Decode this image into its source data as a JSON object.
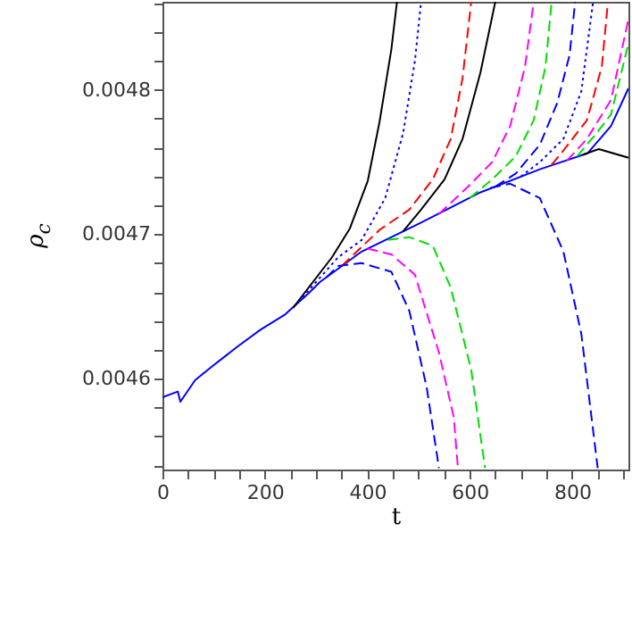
{
  "chart_data": {
    "type": "line",
    "xlabel": "t",
    "ylabel": "ρ$_{c}$",
    "xlim": [
      0,
      910
    ],
    "ylim": [
      0.004537,
      0.004861
    ],
    "xticks": [
      0,
      {
        "value": 50,
        "label": null
      },
      {
        "value": 100,
        "label": null
      },
      {
        "value": 150,
        "label": null
      },
      200,
      {
        "value": 250,
        "label": null
      },
      {
        "value": 300,
        "label": null
      },
      {
        "value": 350,
        "label": null
      },
      400,
      {
        "value": 450,
        "label": null
      },
      {
        "value": 500,
        "label": null
      },
      {
        "value": 550,
        "label": null
      },
      600,
      {
        "value": 650,
        "label": null
      },
      {
        "value": 700,
        "label": null
      },
      {
        "value": 750,
        "label": null
      },
      800,
      {
        "value": 850,
        "label": null
      },
      {
        "value": 900,
        "label": null
      }
    ],
    "yticks": [
      {
        "value": 0.00454,
        "label": null
      },
      {
        "value": 0.00456,
        "label": null
      },
      {
        "value": 0.00458,
        "label": null
      },
      {
        "value": 0.0046,
        "label": "0.0046"
      },
      {
        "value": 0.00462,
        "label": null
      },
      {
        "value": 0.00464,
        "label": null
      },
      {
        "value": 0.00466,
        "label": null
      },
      {
        "value": 0.00468,
        "label": null
      },
      {
        "value": 0.0047,
        "label": "0.0047"
      },
      {
        "value": 0.00472,
        "label": null
      },
      {
        "value": 0.00474,
        "label": null
      },
      {
        "value": 0.00476,
        "label": null
      },
      {
        "value": 0.00478,
        "label": null
      },
      {
        "value": 0.0048,
        "label": "0.0048"
      },
      {
        "value": 0.00482,
        "label": null
      },
      {
        "value": 0.00484,
        "label": null
      },
      {
        "value": 0.00486,
        "label": null
      }
    ],
    "grid": false,
    "series": [
      {
        "color": "#0000ff",
        "line_style": "solid",
        "x": [
          0,
          30,
          35,
          64,
          99,
          146,
          192,
          238,
          285,
          308,
          389,
          505,
          621,
          737,
          830,
          876,
          910
        ],
        "values": [
          0.004587,
          0.004591,
          0.004584,
          0.004599,
          0.004609,
          0.004622,
          0.004634,
          0.004644,
          0.004659,
          0.004667,
          0.004688,
          0.004708,
          0.004729,
          0.004745,
          0.004756,
          0.004775,
          0.004801
        ]
      },
      {
        "color": "#000000",
        "line_style": "solid",
        "x": [
          255,
          331,
          366,
          401,
          424,
          447,
          458
        ],
        "values": [
          0.004649,
          0.004684,
          0.004704,
          0.004737,
          0.004778,
          0.004828,
          0.004861
        ]
      },
      {
        "color": "#0000ff",
        "line_style": "dotted",
        "x": [
          265,
          343,
          389,
          435,
          470,
          493,
          505
        ],
        "values": [
          0.004653,
          0.004684,
          0.004696,
          0.004725,
          0.00477,
          0.00482,
          0.004861
        ]
      },
      {
        "color": "#ff0000",
        "line_style": "dashed",
        "x": [
          350,
          424,
          482,
          528,
          563,
          586,
          603
        ],
        "values": [
          0.004678,
          0.004703,
          0.004717,
          0.004738,
          0.004766,
          0.004808,
          0.004861
        ]
      },
      {
        "color": "#000000",
        "line_style": "solid",
        "x": [
          470,
          505,
          551,
          586,
          621,
          650
        ],
        "values": [
          0.004702,
          0.004717,
          0.004738,
          0.004766,
          0.004812,
          0.004861
        ]
      },
      {
        "color": "#ff00ff",
        "line_style": "dashed",
        "x": [
          540,
          597,
          644,
          679,
          708,
          725
        ],
        "values": [
          0.004714,
          0.004733,
          0.00475,
          0.004775,
          0.004816,
          0.004861
        ]
      },
      {
        "color": "#00dd00",
        "line_style": "dashed",
        "x": [
          600,
          644,
          690,
          725,
          748,
          760
        ],
        "values": [
          0.004725,
          0.004738,
          0.004754,
          0.004779,
          0.004816,
          0.004861
        ]
      },
      {
        "color": "#0000ff",
        "line_style": "dashed",
        "x": [
          650,
          690,
          737,
          771,
          795,
          806
        ],
        "values": [
          0.004733,
          0.004742,
          0.004762,
          0.004791,
          0.004824,
          0.004861
        ]
      },
      {
        "color": "#0000ff",
        "line_style": "dotted",
        "x": [
          700,
          737,
          783,
          818,
          841
        ],
        "values": [
          0.00474,
          0.00475,
          0.004766,
          0.004799,
          0.004861
        ]
      },
      {
        "color": "#ff0000",
        "line_style": "dashed",
        "x": [
          760,
          783,
          829,
          858,
          870
        ],
        "values": [
          0.004748,
          0.004758,
          0.004779,
          0.004816,
          0.004861
        ]
      },
      {
        "color": "#ff00ff",
        "line_style": "dashed",
        "x": [
          790,
          829,
          876,
          910
        ],
        "values": [
          0.004751,
          0.004766,
          0.004793,
          0.004849
        ]
      },
      {
        "color": "#00dd00",
        "line_style": "dashed",
        "x": [
          810,
          850,
          876,
          910
        ],
        "values": [
          0.004754,
          0.004771,
          0.004783,
          0.004832
        ]
      },
      {
        "color": "#000000",
        "line_style": "solid",
        "x": [
          820,
          852,
          910
        ],
        "values": [
          0.004755,
          0.004759,
          0.004753
        ]
      },
      {
        "color": "#0000ff",
        "line_style": "dashed",
        "x": [
          320,
          343,
          389,
          447,
          482,
          516,
          540
        ],
        "values": [
          0.00467,
          0.004678,
          0.00468,
          0.004674,
          0.004647,
          0.004594,
          0.004538
        ]
      },
      {
        "color": "#ff00ff",
        "line_style": "dashed",
        "x": [
          400,
          424,
          447,
          493,
          540,
          569,
          577
        ],
        "values": [
          0.00469,
          0.004688,
          0.004686,
          0.004672,
          0.004618,
          0.004573,
          0.004538
        ]
      },
      {
        "color": "#00dd00",
        "line_style": "dashed",
        "x": [
          440,
          482,
          528,
          563,
          603,
          630
        ],
        "values": [
          0.004696,
          0.004698,
          0.004692,
          0.004663,
          0.004606,
          0.004538
        ]
      },
      {
        "color": "#0000ff",
        "line_style": "dashed",
        "x": [
          640,
          679,
          737,
          783,
          818,
          850
        ],
        "values": [
          0.004732,
          0.004735,
          0.004725,
          0.004688,
          0.004631,
          0.004538
        ]
      }
    ]
  }
}
